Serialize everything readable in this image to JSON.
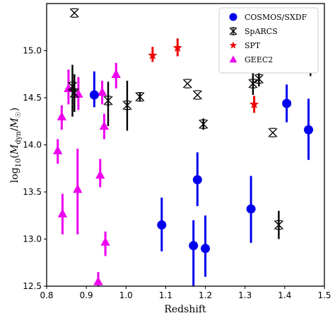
{
  "chart_data": {
    "type": "scatter",
    "xlabel": "Redshift",
    "ylabel": "log10(Mdyn/M☉)",
    "xlim": [
      0.8,
      1.5
    ],
    "ylim": [
      12.5,
      15.5
    ],
    "x_ticks": [
      0.8,
      0.9,
      1.0,
      1.1,
      1.2,
      1.3,
      1.4,
      1.5
    ],
    "y_ticks": [
      12.5,
      13.0,
      13.5,
      14.0,
      14.5,
      15.0
    ],
    "legend_position": "top-right",
    "grid": false,
    "series": [
      {
        "name": "COSMOS/SXDF",
        "marker": "circle",
        "color": "#0000ee",
        "points": [
          {
            "x": 0.92,
            "y": 14.53,
            "lo": 14.4,
            "hi": 14.78
          },
          {
            "x": 1.09,
            "y": 13.15,
            "lo": 12.87,
            "hi": 13.44
          },
          {
            "x": 1.17,
            "y": 12.93,
            "lo": 12.5,
            "hi": 13.2
          },
          {
            "x": 1.18,
            "y": 13.63,
            "lo": 13.35,
            "hi": 13.92
          },
          {
            "x": 1.2,
            "y": 12.9,
            "lo": 12.6,
            "hi": 13.25
          },
          {
            "x": 1.315,
            "y": 13.32,
            "lo": 12.96,
            "hi": 13.67
          },
          {
            "x": 1.405,
            "y": 14.44,
            "lo": 14.24,
            "hi": 14.64
          },
          {
            "x": 1.46,
            "y": 14.16,
            "lo": 13.84,
            "hi": 14.49
          }
        ]
      },
      {
        "name": "SpARCS",
        "marker": "x",
        "color": "#000000",
        "points": [
          {
            "x": 0.865,
            "y": 14.62,
            "lo": 14.3,
            "hi": 14.85
          },
          {
            "x": 0.87,
            "y": 15.4,
            "lo": 15.4,
            "hi": 15.4
          },
          {
            "x": 0.87,
            "y": 14.55,
            "lo": 14.35,
            "hi": 14.75
          },
          {
            "x": 0.955,
            "y": 14.47,
            "lo": 14.2,
            "hi": 14.67
          },
          {
            "x": 1.003,
            "y": 14.42,
            "lo": 14.15,
            "hi": 14.68
          },
          {
            "x": 1.035,
            "y": 14.51,
            "lo": 14.46,
            "hi": 14.56
          },
          {
            "x": 1.155,
            "y": 14.65,
            "lo": 14.65,
            "hi": 14.65
          },
          {
            "x": 1.18,
            "y": 14.53,
            "lo": 14.53,
            "hi": 14.53
          },
          {
            "x": 1.195,
            "y": 14.22,
            "lo": 14.16,
            "hi": 14.28
          },
          {
            "x": 1.32,
            "y": 14.65,
            "lo": 14.53,
            "hi": 14.78
          },
          {
            "x": 1.335,
            "y": 14.7,
            "lo": 14.62,
            "hi": 14.78
          },
          {
            "x": 1.37,
            "y": 14.13,
            "lo": 14.13,
            "hi": 14.13
          },
          {
            "x": 1.385,
            "y": 13.15,
            "lo": 13.0,
            "hi": 13.3
          },
          {
            "x": 1.465,
            "y": 14.83,
            "lo": 14.73,
            "hi": 14.94
          }
        ]
      },
      {
        "name": "SPT",
        "marker": "star",
        "color": "#ee0000",
        "points": [
          {
            "x": 1.067,
            "y": 14.95,
            "lo": 14.88,
            "hi": 15.04
          },
          {
            "x": 1.13,
            "y": 15.03,
            "lo": 14.94,
            "hi": 15.13
          },
          {
            "x": 1.323,
            "y": 14.43,
            "lo": 14.34,
            "hi": 14.52
          }
        ]
      },
      {
        "name": "GEEC2",
        "marker": "triangle",
        "color": "#ee00ee",
        "points": [
          {
            "x": 0.828,
            "y": 13.94,
            "lo": 13.8,
            "hi": 14.06
          },
          {
            "x": 0.838,
            "y": 14.3,
            "lo": 14.16,
            "hi": 14.42
          },
          {
            "x": 0.84,
            "y": 13.27,
            "lo": 13.05,
            "hi": 13.48
          },
          {
            "x": 0.855,
            "y": 14.6,
            "lo": 14.43,
            "hi": 14.8
          },
          {
            "x": 0.878,
            "y": 13.53,
            "lo": 13.05,
            "hi": 13.96
          },
          {
            "x": 0.88,
            "y": 14.54,
            "lo": 14.37,
            "hi": 14.72
          },
          {
            "x": 0.93,
            "y": 12.55,
            "lo": 12.5,
            "hi": 12.65
          },
          {
            "x": 0.935,
            "y": 13.68,
            "lo": 13.55,
            "hi": 13.85
          },
          {
            "x": 0.94,
            "y": 14.56,
            "lo": 14.43,
            "hi": 14.68
          },
          {
            "x": 0.945,
            "y": 14.2,
            "lo": 14.06,
            "hi": 14.33
          },
          {
            "x": 0.948,
            "y": 12.97,
            "lo": 12.82,
            "hi": 13.08
          },
          {
            "x": 0.975,
            "y": 14.75,
            "lo": 14.6,
            "hi": 14.87
          }
        ]
      }
    ]
  }
}
